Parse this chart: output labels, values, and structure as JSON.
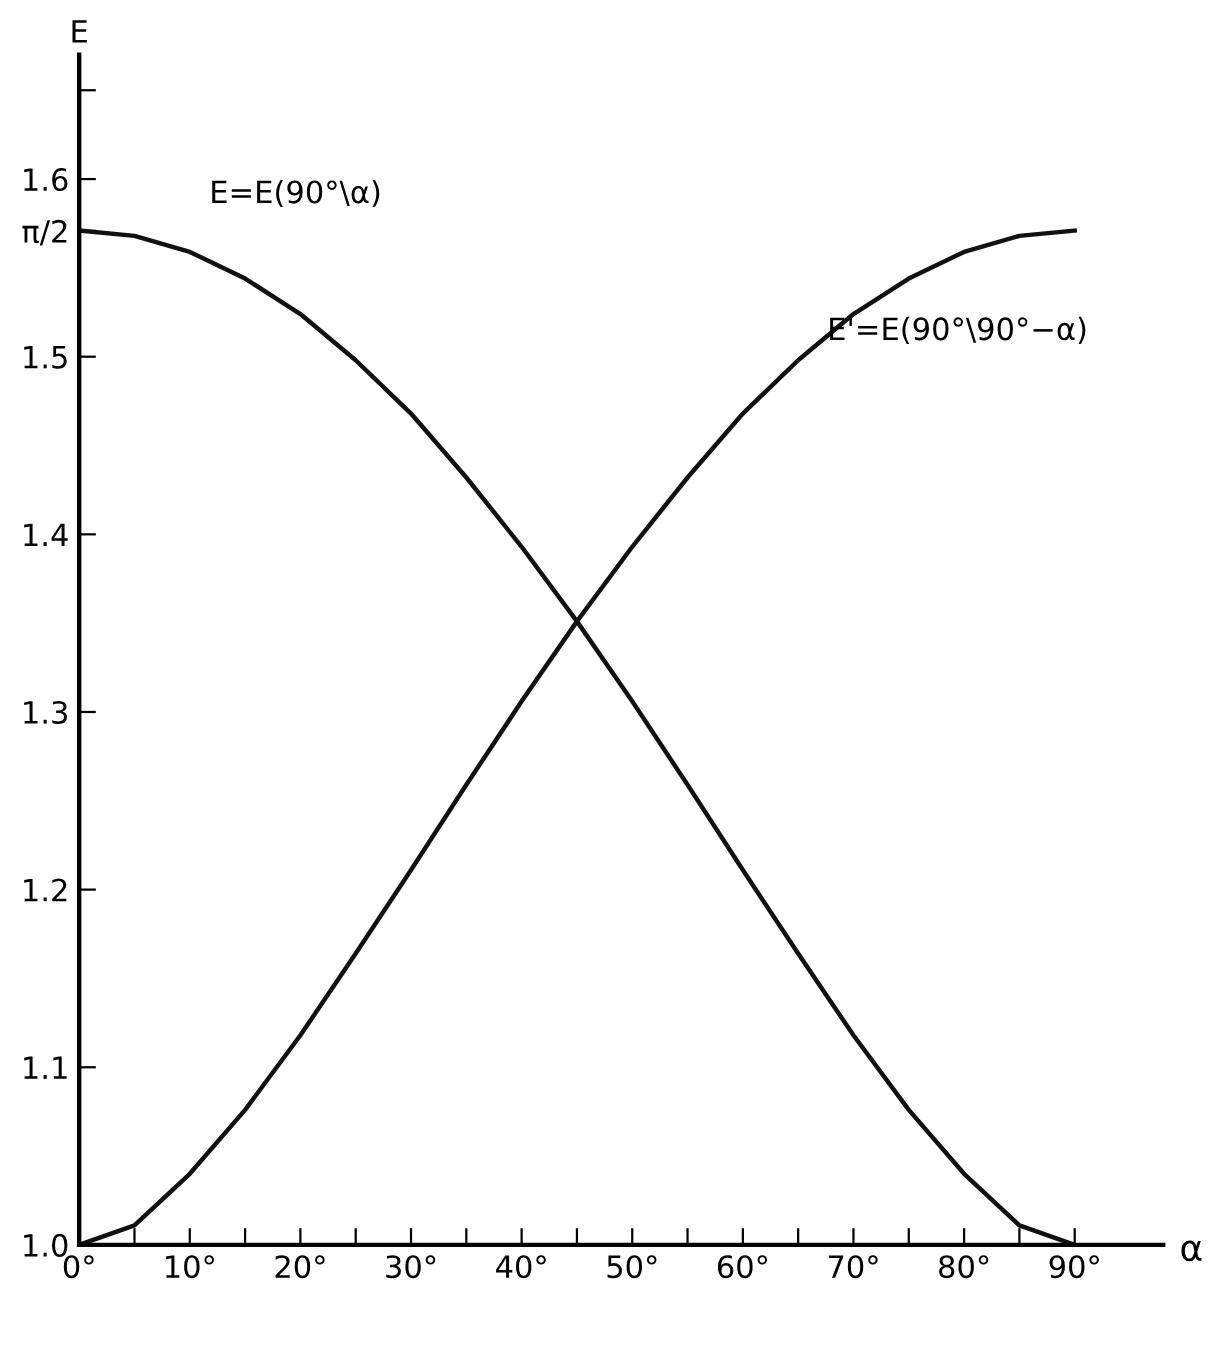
{
  "chart_data": {
    "type": "line",
    "xlabel": "α",
    "ylabel": "E",
    "x": [
      0,
      5,
      10,
      15,
      20,
      25,
      30,
      35,
      40,
      45,
      50,
      55,
      60,
      65,
      70,
      75,
      80,
      85,
      90
    ],
    "series": [
      {
        "color": "#111111",
        "values": [
          1.571,
          1.568,
          1.559,
          1.544,
          1.524,
          1.498,
          1.468,
          1.432,
          1.393,
          1.351,
          1.306,
          1.259,
          1.211,
          1.164,
          1.118,
          1.076,
          1.04,
          1.011,
          1.0
        ]
      },
      {
        "color": "#111111",
        "values": [
          1.0,
          1.011,
          1.04,
          1.076,
          1.118,
          1.164,
          1.211,
          1.259,
          1.306,
          1.351,
          1.393,
          1.432,
          1.468,
          1.498,
          1.524,
          1.544,
          1.559,
          1.568,
          1.571
        ]
      }
    ],
    "annotations": [
      "E=E(90°\\α)",
      "E'=E(90°\\90°−α)"
    ],
    "xlim": [
      0,
      98
    ],
    "ylim": [
      1.0,
      1.67
    ],
    "xticks": [
      {
        "value": 0,
        "label": "0°"
      },
      {
        "value": 5,
        "label": null
      },
      {
        "value": 10,
        "label": "10°"
      },
      {
        "value": 15,
        "label": null
      },
      {
        "value": 20,
        "label": "20°"
      },
      {
        "value": 25,
        "label": null
      },
      {
        "value": 30,
        "label": "30°"
      },
      {
        "value": 35,
        "label": null
      },
      {
        "value": 40,
        "label": "40°"
      },
      {
        "value": 45,
        "label": null
      },
      {
        "value": 50,
        "label": "50°"
      },
      {
        "value": 55,
        "label": null
      },
      {
        "value": 60,
        "label": "60°"
      },
      {
        "value": 65,
        "label": null
      },
      {
        "value": 70,
        "label": "70°"
      },
      {
        "value": 75,
        "label": null
      },
      {
        "value": 80,
        "label": "80°"
      },
      {
        "value": 85,
        "label": null
      },
      {
        "value": 90,
        "label": "90°"
      }
    ],
    "yticks": [
      {
        "value": 1.0,
        "label": "1.0"
      },
      {
        "value": 1.1,
        "label": "1.1"
      },
      {
        "value": 1.2,
        "label": "1.2"
      },
      {
        "value": 1.3,
        "label": "1.3"
      },
      {
        "value": 1.4,
        "label": "1.4"
      },
      {
        "value": 1.5,
        "label": "1.5"
      },
      {
        "value": 1.5708,
        "label": "π/2"
      },
      {
        "value": 1.6,
        "label": "1.6"
      },
      {
        "value": 1.65,
        "label": null
      }
    ],
    "grid": false,
    "legend": false,
    "marker": "none",
    "line_style": "solid"
  }
}
